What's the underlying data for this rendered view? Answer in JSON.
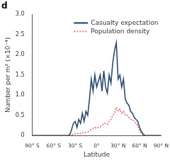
{
  "chart_data": {
    "type": "line",
    "title": "d",
    "x_label": "Latitude",
    "y_label": "Number per m² (×10⁻⁴)",
    "x": [
      -90,
      -87.5,
      -85,
      -82.5,
      -80,
      -77.5,
      -75,
      -72.5,
      -70,
      -67.5,
      -65,
      -62.5,
      -60,
      -57.5,
      -55,
      -52.5,
      -50,
      -47.5,
      -45,
      -42.5,
      -40,
      -37.5,
      -35,
      -32.5,
      -30,
      -27.5,
      -25,
      -22.5,
      -20,
      -17.5,
      -15,
      -12.5,
      -10,
      -7.5,
      -5,
      -2.5,
      0,
      2.5,
      5,
      7.5,
      10,
      12.5,
      15,
      17.5,
      20,
      22.5,
      25,
      27.5,
      30,
      32.5,
      35,
      37.5,
      40,
      42.5,
      45,
      47.5,
      50,
      52.5,
      55,
      57.5,
      60,
      62.5,
      65,
      67.5,
      70,
      72.5,
      75,
      77.5,
      80,
      82.5,
      85,
      87.5,
      90
    ],
    "series": [
      {
        "name": "Casualty expectation",
        "color": "#2c4a6e",
        "line_style": "solid",
        "values": [
          0,
          0,
          0,
          0,
          0,
          0,
          0,
          0,
          0,
          0,
          0,
          0,
          0,
          0,
          0,
          0,
          0,
          0,
          0,
          0,
          0,
          0.02,
          0.15,
          0.3,
          0.35,
          0.2,
          0.4,
          0.3,
          0.55,
          0.35,
          0.6,
          0.5,
          0.9,
          1.4,
          1.1,
          1.5,
          1.2,
          1.35,
          1.5,
          1.1,
          1.6,
          1.2,
          1.05,
          1.5,
          1.3,
          1.8,
          2.1,
          2.3,
          1.4,
          1.5,
          1.2,
          1.4,
          0.9,
          0.8,
          0.75,
          0.6,
          0.55,
          0.45,
          0.4,
          0.35,
          0.2,
          0.1,
          0.03,
          0,
          0,
          0,
          0,
          0,
          0,
          0,
          0,
          0,
          0
        ]
      },
      {
        "name": "Population density",
        "color": "#e8707c",
        "line_style": "dotted",
        "values": [
          0,
          0,
          0,
          0,
          0,
          0,
          0,
          0,
          0,
          0,
          0,
          0,
          0,
          0,
          0,
          0,
          0,
          0,
          0,
          0,
          0,
          0,
          0.01,
          0.03,
          0.05,
          0.04,
          0.06,
          0.05,
          0.07,
          0.06,
          0.08,
          0.08,
          0.12,
          0.15,
          0.18,
          0.2,
          0.18,
          0.2,
          0.22,
          0.25,
          0.3,
          0.3,
          0.28,
          0.35,
          0.4,
          0.5,
          0.55,
          0.7,
          0.6,
          0.65,
          0.55,
          0.6,
          0.5,
          0.5,
          0.45,
          0.4,
          0.4,
          0.35,
          0.3,
          0.25,
          0.12,
          0.05,
          0.01,
          0,
          0,
          0,
          0,
          0,
          0,
          0,
          0,
          0,
          0
        ]
      }
    ],
    "xlim": [
      -90,
      90
    ],
    "xticks": [
      {
        "value": -90,
        "label": "90° S"
      },
      {
        "value": -60,
        "label": "60° S"
      },
      {
        "value": -30,
        "label": "30° S"
      },
      {
        "value": 0,
        "label": "0°"
      },
      {
        "value": 30,
        "label": "30° N"
      },
      {
        "value": 60,
        "label": "60° N"
      },
      {
        "value": 90,
        "label": "90° N"
      }
    ],
    "ylim": [
      0,
      3
    ],
    "yticks": [
      0,
      0.5,
      {
        "value": 1,
        "label": "1.0"
      },
      1.5,
      {
        "value": 2,
        "label": "2.0"
      },
      2.5,
      {
        "value": 3,
        "label": "3.0"
      }
    ],
    "grid": false,
    "legend": "upper right"
  }
}
